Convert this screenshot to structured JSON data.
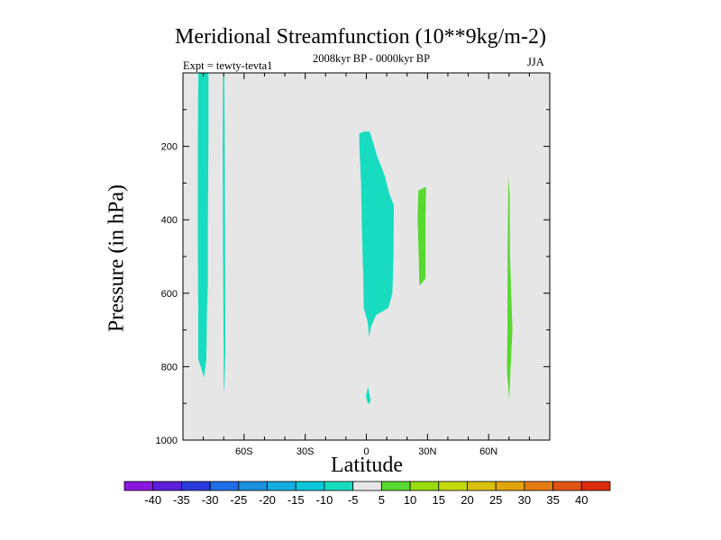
{
  "chart_data": {
    "type": "contour",
    "title": "Meridional Streamfunction (10**9kg/m-2)",
    "subtitle": "2008kyr BP - 0000kyr BP",
    "experiment": "Expt = tewty-tevta1",
    "season": "JJA",
    "xlabel": "Latitude",
    "ylabel": "Pressure (in hPa)",
    "xlim": [
      -90,
      90
    ],
    "ylim": [
      1000,
      0
    ],
    "x_ticks": [
      {
        "value": -60,
        "label": "60S"
      },
      {
        "value": -30,
        "label": "30S"
      },
      {
        "value": 0,
        "label": "0"
      },
      {
        "value": 30,
        "label": "30N"
      },
      {
        "value": 60,
        "label": "60N"
      }
    ],
    "y_ticks": [
      {
        "value": 200,
        "label": "200"
      },
      {
        "value": 400,
        "label": "400"
      },
      {
        "value": 600,
        "label": "600"
      },
      {
        "value": 800,
        "label": "800"
      },
      {
        "value": 1000,
        "label": "1000"
      }
    ],
    "background_color": "#e6e6e6",
    "colorbar": {
      "levels": [
        -40,
        -35,
        -30,
        -25,
        -20,
        -15,
        -10,
        -5,
        5,
        10,
        15,
        20,
        25,
        30,
        35,
        40
      ],
      "labels": [
        "-40",
        "-35",
        "-30",
        "-25",
        "-20",
        "-15",
        "-10",
        "-5",
        "5",
        "10",
        "15",
        "20",
        "25",
        "30",
        "35",
        "40"
      ],
      "colors": [
        "#8a16e0",
        "#5c1fdc",
        "#2c3be0",
        "#1f6ee8",
        "#1a8ee0",
        "#12aee0",
        "#0cc7d8",
        "#18dcc0",
        "#e6e6e6",
        "#58d830",
        "#98dc10",
        "#c4d80e",
        "#d8c00c",
        "#e0a40c",
        "#e47c10",
        "#e05414",
        "#dc2c10"
      ]
    },
    "regions": [
      {
        "name": "neg-column-far-south",
        "level": "-10 to -5",
        "color": "#18dcc0",
        "points": [
          [
            -82.5,
            0
          ],
          [
            -77.5,
            0
          ],
          [
            -77.5,
            180
          ],
          [
            -77.8,
            420
          ],
          [
            -77.8,
            580
          ],
          [
            -78.2,
            640
          ],
          [
            -78.5,
            780
          ],
          [
            -79.7,
            830
          ],
          [
            -81.3,
            800
          ],
          [
            -82.5,
            780
          ],
          [
            -82.5,
            680
          ],
          [
            -82.7,
            450
          ],
          [
            -82.7,
            200
          ]
        ]
      },
      {
        "name": "neg-column-south",
        "level": "-10 to -5",
        "color": "#18dcc0",
        "points": [
          [
            -70.3,
            0
          ],
          [
            -69.7,
            0
          ],
          [
            -69.5,
            200
          ],
          [
            -69.3,
            500
          ],
          [
            -69.2,
            760
          ],
          [
            -69.7,
            870
          ],
          [
            -70.0,
            850
          ],
          [
            -70.0,
            780
          ],
          [
            -70.3,
            500
          ],
          [
            -70.5,
            200
          ]
        ]
      },
      {
        "name": "neg-tropical-cell",
        "level": "-10 to -5",
        "color": "#18dcc0",
        "points": [
          [
            -3.5,
            165
          ],
          [
            -1.3,
            160
          ],
          [
            1.7,
            160
          ],
          [
            5.5,
            230
          ],
          [
            9.0,
            280
          ],
          [
            11.3,
            330
          ],
          [
            13.5,
            360
          ],
          [
            13.3,
            500
          ],
          [
            12.8,
            600
          ],
          [
            10.8,
            640
          ],
          [
            4.7,
            660
          ],
          [
            2.4,
            690
          ],
          [
            1.4,
            720
          ],
          [
            0.7,
            680
          ],
          [
            -1.3,
            640
          ],
          [
            -1.5,
            560
          ],
          [
            -2.2,
            420
          ],
          [
            -2.6,
            300
          ],
          [
            -3.5,
            190
          ]
        ]
      },
      {
        "name": "neg-surface-blob",
        "level": "-10 to -5",
        "color": "#18dcc0",
        "points": [
          [
            0.8,
            855
          ],
          [
            2.1,
            890
          ],
          [
            1.6,
            900
          ],
          [
            0.7,
            900
          ],
          [
            -0.2,
            880
          ]
        ]
      },
      {
        "name": "pos-column-30n",
        "level": "5 to 10",
        "color": "#58d830",
        "points": [
          [
            25.5,
            320
          ],
          [
            29.3,
            310
          ],
          [
            29.0,
            400
          ],
          [
            29.0,
            560
          ],
          [
            26.0,
            580
          ],
          [
            25.7,
            500
          ],
          [
            25.1,
            400
          ]
        ]
      },
      {
        "name": "pos-column-70n",
        "level": "5 to 10",
        "color": "#58d830",
        "points": [
          [
            69.6,
            280
          ],
          [
            70.3,
            330
          ],
          [
            70.5,
            500
          ],
          [
            71.7,
            700
          ],
          [
            70.8,
            800
          ],
          [
            70.1,
            890
          ],
          [
            69.0,
            810
          ],
          [
            69.2,
            700
          ],
          [
            69.3,
            500
          ],
          [
            69.6,
            330
          ]
        ]
      }
    ]
  }
}
